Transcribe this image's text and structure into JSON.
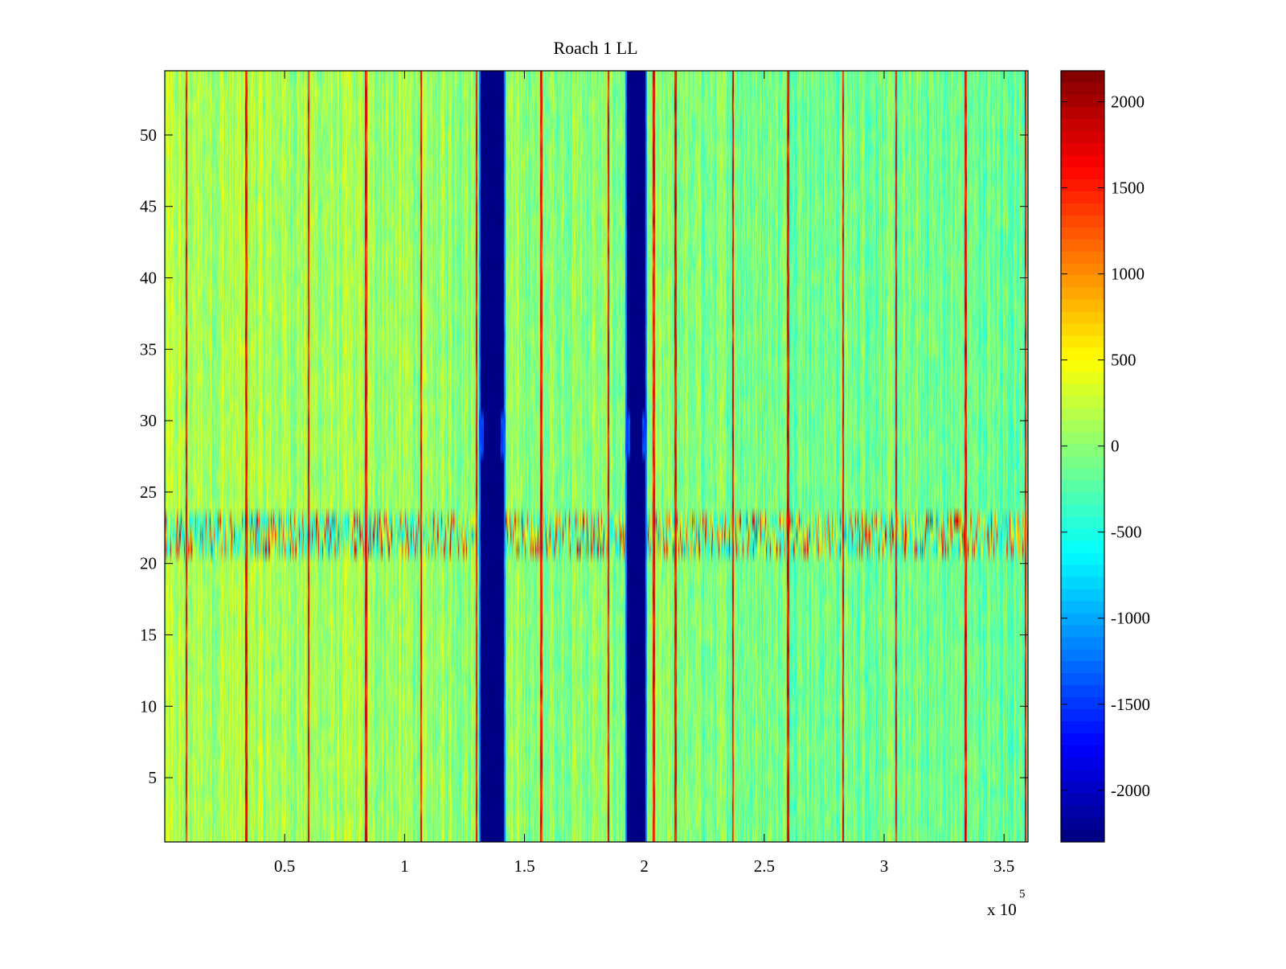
{
  "chart_data": {
    "type": "heatmap",
    "title": "Roach 1 LL",
    "xlabel": "",
    "ylabel": "",
    "x_multiplier_label": "x 10",
    "x_multiplier_exponent": "5",
    "xlim": [
      0,
      3.6
    ],
    "ylim": [
      0.5,
      54.5
    ],
    "x_ticks": [
      {
        "value": 0.5,
        "label": "0.5"
      },
      {
        "value": 1,
        "label": "1"
      },
      {
        "value": 1.5,
        "label": "1.5"
      },
      {
        "value": 2,
        "label": "2"
      },
      {
        "value": 2.5,
        "label": "2.5"
      },
      {
        "value": 3,
        "label": "3"
      },
      {
        "value": 3.5,
        "label": "3.5"
      }
    ],
    "y_ticks": [
      {
        "value": 5,
        "label": "5"
      },
      {
        "value": 10,
        "label": "10"
      },
      {
        "value": 15,
        "label": "15"
      },
      {
        "value": 20,
        "label": "20"
      },
      {
        "value": 25,
        "label": "25"
      },
      {
        "value": 30,
        "label": "30"
      },
      {
        "value": 35,
        "label": "35"
      },
      {
        "value": 40,
        "label": "40"
      },
      {
        "value": 45,
        "label": "45"
      },
      {
        "value": 50,
        "label": "50"
      }
    ],
    "colorbar": {
      "colormap": "jet",
      "clim": [
        -2300,
        2180
      ],
      "ticks": [
        {
          "value": 2000,
          "label": "2000"
        },
        {
          "value": 1500,
          "label": "1500"
        },
        {
          "value": 1000,
          "label": "1000"
        },
        {
          "value": 500,
          "label": "500"
        },
        {
          "value": 0,
          "label": "0"
        },
        {
          "value": -500,
          "label": "-500"
        },
        {
          "value": -1000,
          "label": "-1000"
        },
        {
          "value": -1500,
          "label": "-1500"
        },
        {
          "value": -2000,
          "label": "-2000"
        }
      ]
    },
    "background_value_range": [
      -500,
      500
    ],
    "blank_bands": [
      {
        "x_start": 1.31,
        "x_end": 1.42,
        "value": -2300
      },
      {
        "x_start": 1.92,
        "x_end": 2.01,
        "value": -2300
      }
    ],
    "bright_lines_x": [
      0.09,
      0.34,
      0.6,
      0.84,
      1.07,
      1.3,
      1.57,
      1.85,
      2.04,
      2.13,
      2.37,
      2.6,
      2.83,
      3.05,
      3.34,
      3.59
    ],
    "interference_rows": {
      "y_start": 20.5,
      "y_end": 23.5,
      "value_range": [
        -800,
        2100
      ]
    }
  }
}
